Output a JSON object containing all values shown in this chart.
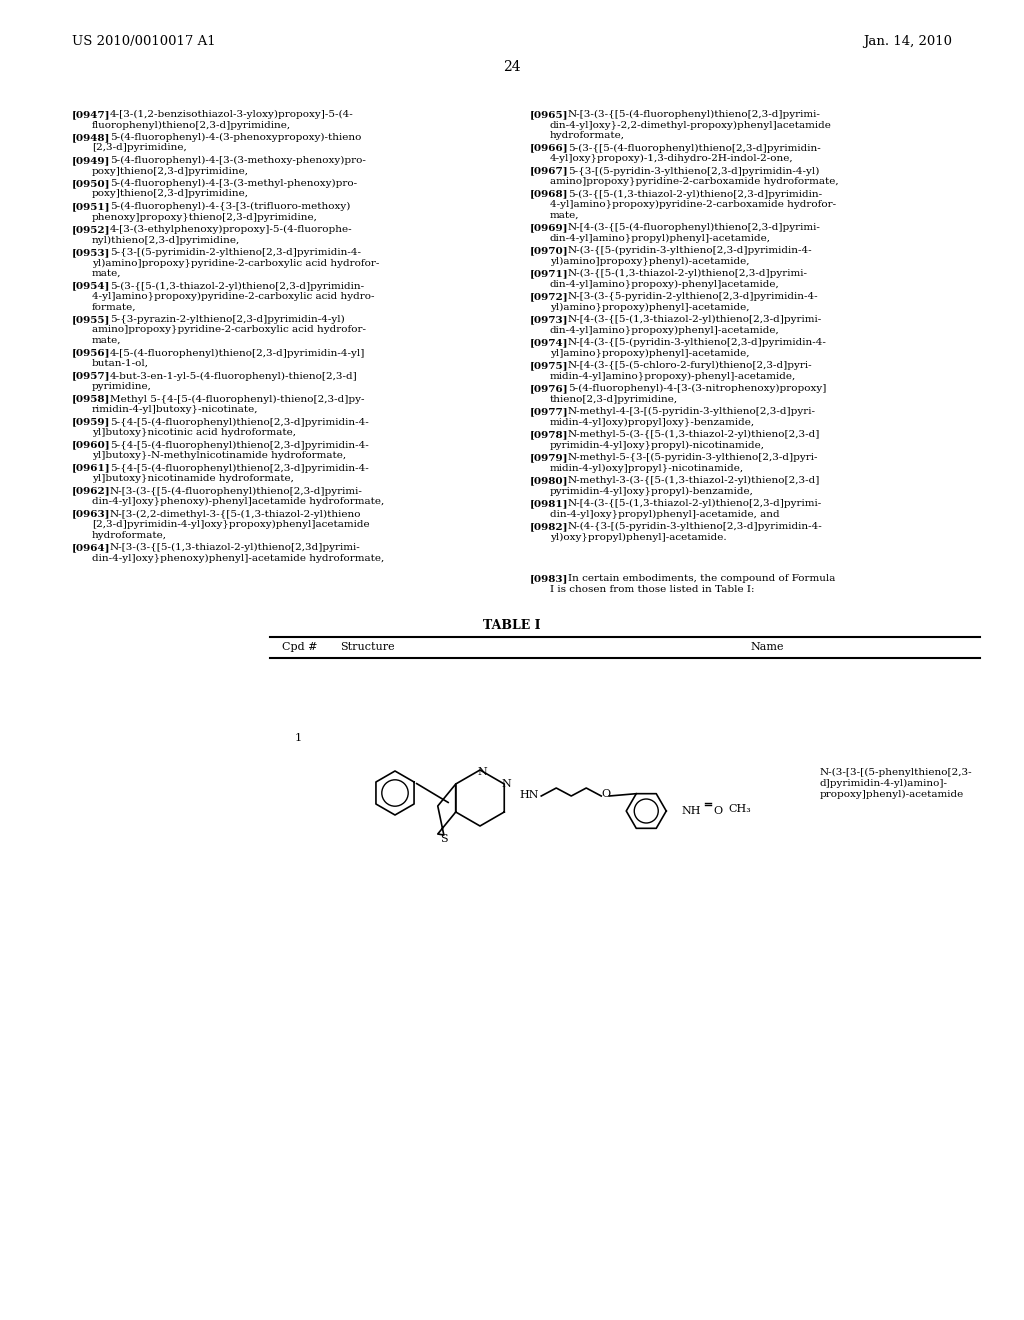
{
  "background_color": "#ffffff",
  "header_left": "US 2010/0010017 A1",
  "header_right": "Jan. 14, 2010",
  "page_number": "24",
  "left_column_entries": [
    {
      "ref": "[0947]",
      "text": "4-[3-(1,2-benzisothiazol-3-yloxy)propoxy]-5-(4-\nfluorophenyl)thieno[2,3-d]pyrimidine,"
    },
    {
      "ref": "[0948]",
      "text": "5-(4-fluorophenyl)-4-(3-phenoxypropoxy)-thieno\n[2,3-d]pyrimidine,"
    },
    {
      "ref": "[0949]",
      "text": "5-(4-fluorophenyl)-4-[3-(3-methoxy-phenoxy)pro-\npoxy]thieno[2,3-d]pyrimidine,"
    },
    {
      "ref": "[0950]",
      "text": "5-(4-fluorophenyl)-4-[3-(3-methyl-phenoxy)pro-\npoxy]thieno[2,3-d]pyrimidine,"
    },
    {
      "ref": "[0951]",
      "text": "5-(4-fluorophenyl)-4-{3-[3-(trifluoro-methoxy)\nphenoxy]propoxy}thieno[2,3-d]pyrimidine,"
    },
    {
      "ref": "[0952]",
      "text": "4-[3-(3-ethylphenoxy)propoxy]-5-(4-fluorophe-\nnyl)thieno[2,3-d]pyrimidine,"
    },
    {
      "ref": "[0953]",
      "text": "5-{3-[(5-pyrimidin-2-ylthieno[2,3-d]pyrimidin-4-\nyl)amino]propoxy}pyridine-2-carboxylic acid hydrofor-\nmate,"
    },
    {
      "ref": "[0954]",
      "text": "5-(3-{[5-(1,3-thiazol-2-yl)thieno[2,3-d]pyrimidin-\n4-yl]amino}propoxy)pyridine-2-carboxylic acid hydro-\nformate,"
    },
    {
      "ref": "[0955]",
      "text": "5-{3-pyrazin-2-ylthieno[2,3-d]pyrimidin-4-yl)\namino]propoxy}pyridine-2-carboxylic acid hydrofor-\nmate,"
    },
    {
      "ref": "[0956]",
      "text": "4-[5-(4-fluorophenyl)thieno[2,3-d]pyrimidin-4-yl]\nbutan-1-ol,"
    },
    {
      "ref": "[0957]",
      "text": "4-but-3-en-1-yl-5-(4-fluorophenyl)-thieno[2,3-d]\npyrimidine,"
    },
    {
      "ref": "[0958]",
      "text": "Methyl 5-{4-[5-(4-fluorophenyl)-thieno[2,3-d]py-\nrimidin-4-yl]butoxy}-nicotinate,"
    },
    {
      "ref": "[0959]",
      "text": "5-{4-[5-(4-fluorophenyl)thieno[2,3-d]pyrimidin-4-\nyl]butoxy}nicotinic acid hydroformate,"
    },
    {
      "ref": "[0960]",
      "text": "5-{4-[5-(4-fluorophenyl)thieno[2,3-d]pyrimidin-4-\nyl]butoxy}-N-methylnicotinamide hydroformate,"
    },
    {
      "ref": "[0961]",
      "text": "5-{4-[5-(4-fluorophenyl)thieno[2,3-d]pyrimidin-4-\nyl]butoxy}nicotinamide hydroformate,"
    },
    {
      "ref": "[0962]",
      "text": "N-[3-(3-{[5-(4-fluorophenyl)thieno[2,3-d]pyrimi-\ndin-4-yl]oxy}phenoxy)-phenyl]acetamide hydroformate,"
    },
    {
      "ref": "[0963]",
      "text": "N-[3-(2,2-dimethyl-3-{[5-(1,3-thiazol-2-yl)thieno\n[2,3-d]pyrimidin-4-yl]oxy}propoxy)phenyl]acetamide\nhydroformate,"
    },
    {
      "ref": "[0964]",
      "text": "N-[3-(3-{[5-(1,3-thiazol-2-yl)thieno[2,3d]pyrimi-\ndin-4-yl]oxy}phenoxy)phenyl]-acetamide hydroformate,"
    }
  ],
  "right_column_entries": [
    {
      "ref": "[0965]",
      "text": "N-[3-(3-{[5-(4-fluorophenyl)thieno[2,3-d]pyrimi-\ndin-4-yl]oxy}-2,2-dimethyl-propoxy)phenyl]acetamide\nhydroformate,"
    },
    {
      "ref": "[0966]",
      "text": "5-(3-{[5-(4-fluorophenyl)thieno[2,3-d]pyrimidin-\n4-yl]oxy}propoxy)-1,3-dihydro-2H-indol-2-one,"
    },
    {
      "ref": "[0967]",
      "text": "5-{3-[(5-pyridin-3-ylthieno[2,3-d]pyrimidin-4-yl)\namino]propoxy}pyridine-2-carboxamide hydroformate,"
    },
    {
      "ref": "[0968]",
      "text": "5-(3-{[5-(1,3-thiazol-2-yl)thieno[2,3-d]pyrimidin-\n4-yl]amino}propoxy)pyridine-2-carboxamide hydrofor-\nmate,"
    },
    {
      "ref": "[0969]",
      "text": "N-[4-(3-{[5-(4-fluorophenyl)thieno[2,3-d]pyrimi-\ndin-4-yl]amino}propyl)phenyl]-acetamide,"
    },
    {
      "ref": "[0970]",
      "text": "N-(3-{[5-(pyridin-3-ylthieno[2,3-d]pyrimidin-4-\nyl)amino]propoxy}phenyl)-acetamide,"
    },
    {
      "ref": "[0971]",
      "text": "N-(3-{[5-(1,3-thiazol-2-yl)thieno[2,3-d]pyrimi-\ndin-4-yl]amino}propoxy)-phenyl]acetamide,"
    },
    {
      "ref": "[0972]",
      "text": "N-[3-(3-{5-pyridin-2-ylthieno[2,3-d]pyrimidin-4-\nyl)amino}propoxy)phenyl]-acetamide,"
    },
    {
      "ref": "[0973]",
      "text": "N-[4-(3-{[5-(1,3-thiazol-2-yl)thieno[2,3-d]pyrimi-\ndin-4-yl]amino}propoxy)phenyl]-acetamide,"
    },
    {
      "ref": "[0974]",
      "text": "N-[4-(3-{[5-(pyridin-3-ylthieno[2,3-d]pyrimidin-4-\nyl]amino}propoxy)phenyl]-acetamide,"
    },
    {
      "ref": "[0975]",
      "text": "N-[4-(3-{[5-(5-chloro-2-furyl)thieno[2,3-d]pyri-\nmidin-4-yl]amino}propoxy)-phenyl]-acetamide,"
    },
    {
      "ref": "[0976]",
      "text": "5-(4-fluorophenyl)-4-[3-(3-nitrophenoxy)propoxy]\nthieno[2,3-d]pyrimidine,"
    },
    {
      "ref": "[0977]",
      "text": "N-methyl-4-[3-[(5-pyridin-3-ylthieno[2,3-d]pyri-\nmidin-4-yl]oxy)propyl]oxy}-benzamide,"
    },
    {
      "ref": "[0978]",
      "text": "N-methyl-5-(3-{[5-(1,3-thiazol-2-yl)thieno[2,3-d]\npyrimidin-4-yl]oxy}propyl)-nicotinamide,"
    },
    {
      "ref": "[0979]",
      "text": "N-methyl-5-{3-[(5-pyridin-3-ylthieno[2,3-d]pyri-\nmidin-4-yl)oxy]propyl}-nicotinamide,"
    },
    {
      "ref": "[0980]",
      "text": "N-methyl-3-(3-{[5-(1,3-thiazol-2-yl)thieno[2,3-d]\npyrimidin-4-yl]oxy}propyl)-benzamide,"
    },
    {
      "ref": "[0981]",
      "text": "N-[4-(3-{[5-(1,3-thiazol-2-yl)thieno[2,3-d]pyrimi-\ndin-4-yl]oxy}propyl)phenyl]-acetamide, and"
    },
    {
      "ref": "[0982]",
      "text": "N-(4-{3-[(5-pyridin-3-ylthieno[2,3-d]pyrimidin-4-\nyl)oxy}propyl)phenyl]-acetamide."
    }
  ],
  "paragraph_0983": "[0983]   In certain embodiments, the compound of Formula\nI is chosen from those listed in Table I:",
  "table_title": "TABLE I",
  "table_header_cpd": "Cpd #",
  "table_header_structure": "Structure",
  "table_header_name": "Name",
  "compound_number": "1",
  "compound_name": "N-(3-[3-[(5-phenylthieno[2,3-\nd]pyrimidin-4-yl)amino]-\npropoxy]phenyl)-acetamide"
}
